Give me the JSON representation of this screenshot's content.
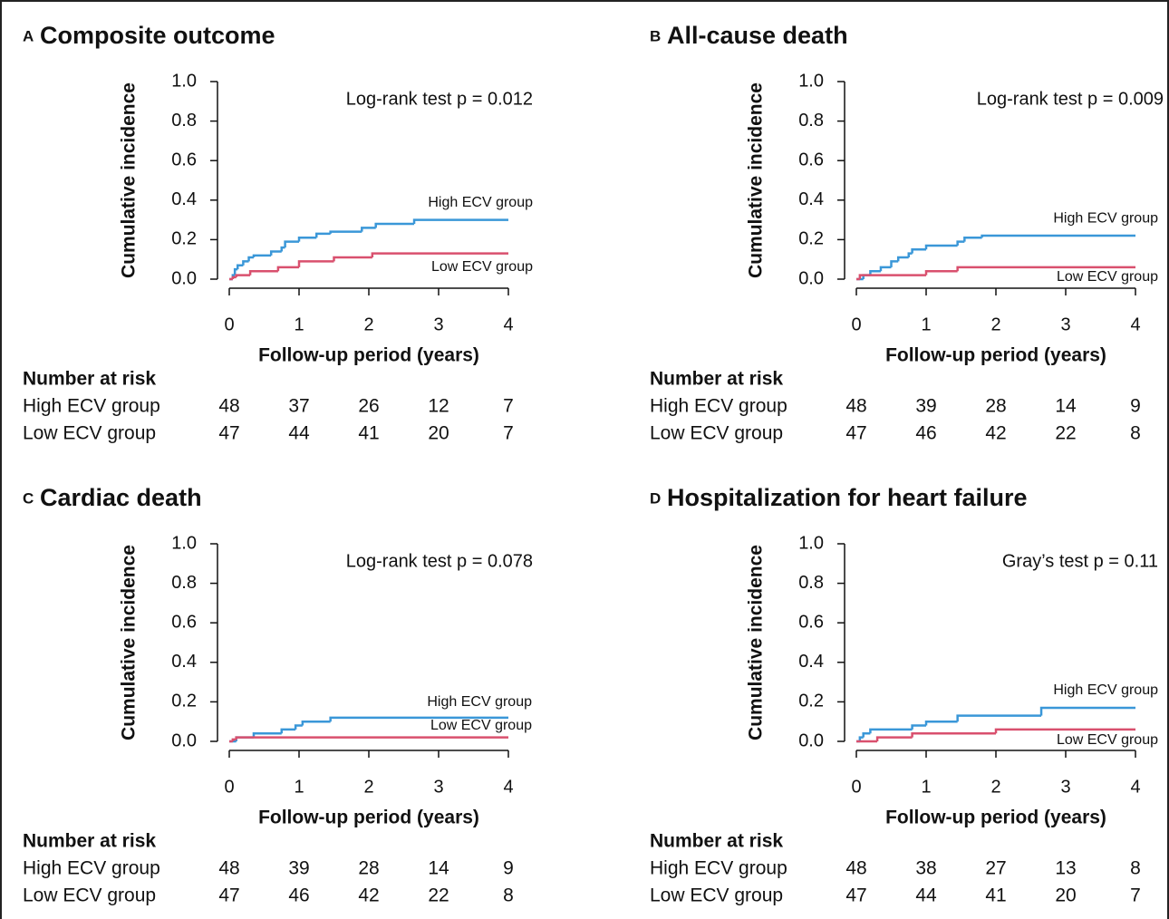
{
  "chart_data": [
    {
      "type": "line",
      "step": "post",
      "panel": "A",
      "title": "Composite outcome",
      "xlabel": "Follow-up period (years)",
      "ylabel": "Cumulative incidence",
      "annotation": "Log-rank test p = 0.012",
      "xlim": [
        0,
        4
      ],
      "ylim": [
        0,
        1
      ],
      "xticks": [
        0,
        1,
        2,
        3,
        4
      ],
      "yticks": [
        {
          "value": 0,
          "label": "0.0"
        },
        {
          "value": 0.2,
          "label": "0.2"
        },
        {
          "value": 0.4,
          "label": "0.4"
        },
        {
          "value": 0.6,
          "label": "0.6"
        },
        {
          "value": 0.8,
          "label": "0.8"
        },
        {
          "value": 1,
          "label": "1.0"
        }
      ],
      "series": [
        {
          "name": "High ECV group",
          "color": "#3a97d8",
          "x": [
            0,
            0.05,
            0.08,
            0.12,
            0.2,
            0.28,
            0.35,
            0.6,
            0.75,
            0.8,
            1.0,
            1.25,
            1.45,
            1.9,
            2.1,
            2.65,
            4
          ],
          "values": [
            0,
            0.02,
            0.05,
            0.07,
            0.09,
            0.11,
            0.12,
            0.14,
            0.16,
            0.19,
            0.21,
            0.23,
            0.24,
            0.26,
            0.28,
            0.3,
            0.3
          ]
        },
        {
          "name": "Low ECV group",
          "color": "#d9506e",
          "x": [
            0,
            0.05,
            0.1,
            0.3,
            0.7,
            1.0,
            1.5,
            2.05,
            4
          ],
          "values": [
            0,
            0.01,
            0.02,
            0.04,
            0.06,
            0.09,
            0.11,
            0.13,
            0.13
          ]
        }
      ],
      "risk_table": {
        "title": "Number at risk",
        "rows": [
          {
            "name": "High ECV group",
            "values": [
              48,
              37,
              26,
              12,
              7
            ]
          },
          {
            "name": "Low ECV group",
            "values": [
              47,
              44,
              41,
              20,
              7
            ]
          }
        ]
      }
    },
    {
      "type": "line",
      "step": "post",
      "panel": "B",
      "title": "All-cause death",
      "xlabel": "Follow-up period (years)",
      "ylabel": "Cumulative incidence",
      "annotation": "Log-rank test p = 0.009",
      "xlim": [
        0,
        4
      ],
      "ylim": [
        0,
        1
      ],
      "xticks": [
        0,
        1,
        2,
        3,
        4
      ],
      "yticks": [
        {
          "value": 0,
          "label": "0.0"
        },
        {
          "value": 0.2,
          "label": "0.2"
        },
        {
          "value": 0.4,
          "label": "0.4"
        },
        {
          "value": 0.6,
          "label": "0.6"
        },
        {
          "value": 0.8,
          "label": "0.8"
        },
        {
          "value": 1,
          "label": "1.0"
        }
      ],
      "series": [
        {
          "name": "High ECV group",
          "color": "#3a97d8",
          "x": [
            0,
            0.1,
            0.2,
            0.35,
            0.5,
            0.6,
            0.75,
            0.8,
            1.0,
            1.45,
            1.55,
            1.8,
            4
          ],
          "values": [
            0,
            0.02,
            0.04,
            0.06,
            0.09,
            0.11,
            0.13,
            0.15,
            0.17,
            0.19,
            0.21,
            0.22,
            0.22
          ]
        },
        {
          "name": "Low ECV group",
          "color": "#d9506e",
          "x": [
            0,
            0.05,
            1.0,
            1.45,
            4
          ],
          "values": [
            0,
            0.02,
            0.04,
            0.06,
            0.06
          ]
        }
      ],
      "risk_table": {
        "title": "Number at risk",
        "rows": [
          {
            "name": "High ECV group",
            "values": [
              48,
              39,
              28,
              14,
              9
            ]
          },
          {
            "name": "Low ECV group",
            "values": [
              47,
              46,
              42,
              22,
              8
            ]
          }
        ]
      }
    },
    {
      "type": "line",
      "step": "post",
      "panel": "C",
      "title": "Cardiac death",
      "xlabel": "Follow-up period (years)",
      "ylabel": "Cumulative incidence",
      "annotation": "Log-rank test p = 0.078",
      "xlim": [
        0,
        4
      ],
      "ylim": [
        0,
        1
      ],
      "xticks": [
        0,
        1,
        2,
        3,
        4
      ],
      "yticks": [
        {
          "value": 0,
          "label": "0.0"
        },
        {
          "value": 0.2,
          "label": "0.2"
        },
        {
          "value": 0.4,
          "label": "0.4"
        },
        {
          "value": 0.6,
          "label": "0.6"
        },
        {
          "value": 0.8,
          "label": "0.8"
        },
        {
          "value": 1,
          "label": "1.0"
        }
      ],
      "series": [
        {
          "name": "High ECV group",
          "color": "#3a97d8",
          "x": [
            0,
            0.1,
            0.35,
            0.75,
            0.95,
            1.05,
            1.45,
            4
          ],
          "values": [
            0,
            0.02,
            0.04,
            0.06,
            0.08,
            0.1,
            0.12,
            0.12
          ]
        },
        {
          "name": "Low ECV group",
          "color": "#d9506e",
          "x": [
            0,
            0.05,
            0.1,
            4
          ],
          "values": [
            0,
            0.01,
            0.02,
            0.02
          ]
        }
      ],
      "risk_table": {
        "title": "Number at risk",
        "rows": [
          {
            "name": "High ECV group",
            "values": [
              48,
              39,
              28,
              14,
              9
            ]
          },
          {
            "name": "Low ECV group",
            "values": [
              47,
              46,
              42,
              22,
              8
            ]
          }
        ]
      }
    },
    {
      "type": "line",
      "step": "post",
      "panel": "D",
      "title": "Hospitalization for heart failure",
      "xlabel": "Follow-up period (years)",
      "ylabel": "Cumulative incidence",
      "annotation": "Gray’s test p = 0.11",
      "xlim": [
        0,
        4
      ],
      "ylim": [
        0,
        1
      ],
      "xticks": [
        0,
        1,
        2,
        3,
        4
      ],
      "yticks": [
        {
          "value": 0,
          "label": "0.0"
        },
        {
          "value": 0.2,
          "label": "0.2"
        },
        {
          "value": 0.4,
          "label": "0.4"
        },
        {
          "value": 0.6,
          "label": "0.6"
        },
        {
          "value": 0.8,
          "label": "0.8"
        },
        {
          "value": 1,
          "label": "1.0"
        }
      ],
      "series": [
        {
          "name": "High ECV group",
          "color": "#3a97d8",
          "x": [
            0,
            0.05,
            0.1,
            0.2,
            0.8,
            1.0,
            1.45,
            2.65,
            4
          ],
          "values": [
            0,
            0.02,
            0.04,
            0.06,
            0.08,
            0.1,
            0.13,
            0.17,
            0.17
          ]
        },
        {
          "name": "Low ECV group",
          "color": "#d9506e",
          "x": [
            0,
            0.3,
            0.8,
            2.0,
            4
          ],
          "values": [
            0,
            0.02,
            0.04,
            0.06,
            0.06
          ]
        }
      ],
      "risk_table": {
        "title": "Number at risk",
        "rows": [
          {
            "name": "High ECV group",
            "values": [
              48,
              38,
              27,
              13,
              8
            ]
          },
          {
            "name": "Low ECV group",
            "values": [
              47,
              44,
              41,
              20,
              7
            ]
          }
        ]
      }
    }
  ]
}
